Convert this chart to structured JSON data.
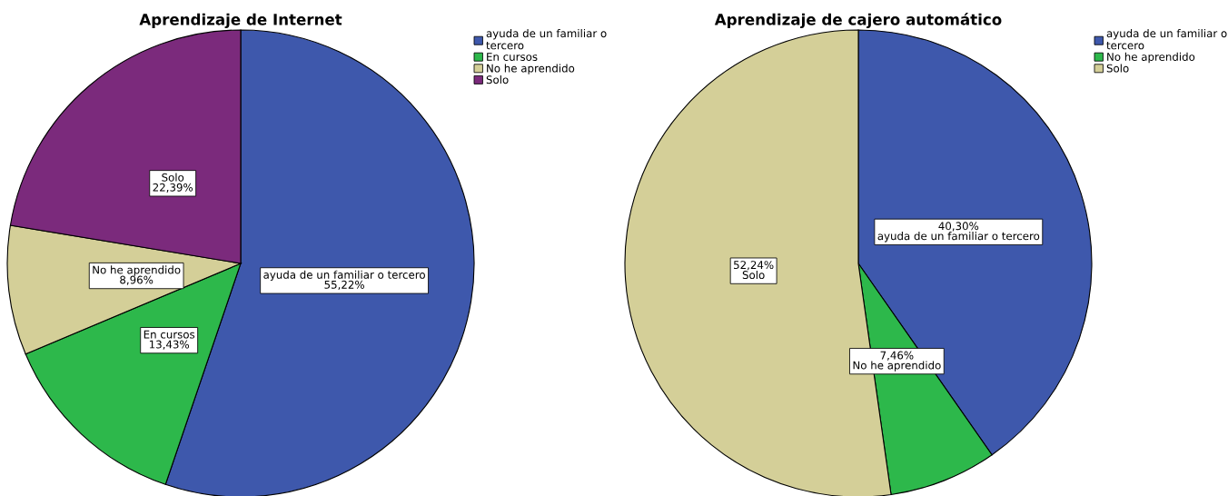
{
  "chart_data": [
    {
      "type": "pie",
      "title": "Aprendizaje de Internet",
      "categories": [
        "ayuda de un familiar o tercero",
        "En cursos",
        "No he aprendido",
        "Solo"
      ],
      "values": [
        55.22,
        13.43,
        8.96,
        22.39
      ],
      "colors": [
        "#3e58ac",
        "#2db84b",
        "#d4cf98",
        "#7b2a7c"
      ],
      "value_labels": [
        "ayuda de un familiar o tercero\n55,22%",
        "En cursos\n13,43%",
        "No he aprendido\n8,96%",
        "Solo\n22,39%"
      ],
      "legend": "top right"
    },
    {
      "type": "pie",
      "title": "Aprendizaje de cajero automático",
      "categories": [
        "ayuda de un familiar o tercero",
        "No he aprendido",
        "Solo"
      ],
      "values": [
        40.3,
        7.46,
        52.24
      ],
      "colors": [
        "#3e58ac",
        "#2db84b",
        "#d4cf98"
      ],
      "value_labels": [
        "40,30%\nayuda de un familiar o tercero",
        "7,46%\nNo he aprendido",
        "52,24%\nSolo"
      ],
      "legend": "top right"
    }
  ]
}
